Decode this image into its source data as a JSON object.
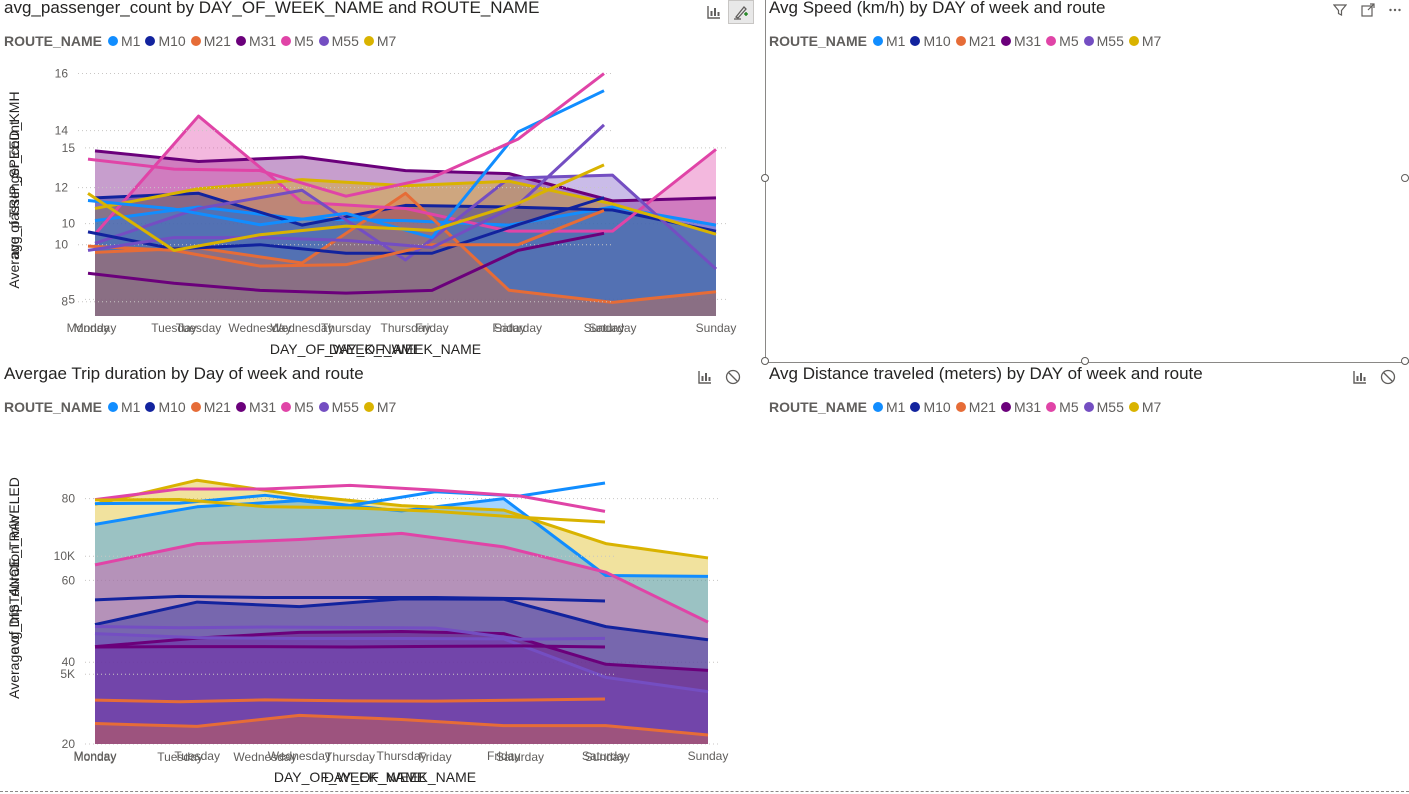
{
  "days": [
    "Monday",
    "Tuesday",
    "Wednesday",
    "Thursday",
    "Friday",
    "Saturday",
    "Sunday"
  ],
  "routes": [
    {
      "name": "M1",
      "color": "#118DFF"
    },
    {
      "name": "M10",
      "color": "#12239E"
    },
    {
      "name": "M21",
      "color": "#E66C37"
    },
    {
      "name": "M31",
      "color": "#6B007B"
    },
    {
      "name": "M5",
      "color": "#E044A7"
    },
    {
      "name": "M55",
      "color": "#744EC2"
    },
    {
      "name": "M7",
      "color": "#D9B300"
    }
  ],
  "legend_title": "ROUTE_NAME",
  "chart_data": [
    {
      "id": "passenger",
      "type": "area",
      "title": "avg_passenger_count by DAY_OF_WEEK_NAME and ROUTE_NAME",
      "xlabel": "DAY_OF_WEEK_NAME",
      "ylabel": "avg_passenger_count",
      "ylim": [
        3.9,
        17.5
      ],
      "yticks": [
        5,
        10,
        15
      ],
      "ytick_labels": [
        "5",
        "10",
        "15"
      ],
      "grid": true,
      "legend_position": "top-left",
      "series": [
        {
          "name": "M1",
          "values": [
            10.2,
            11.1,
            10.3,
            10.2,
            9.9,
            11.1,
            9.9
          ]
        },
        {
          "name": "M10",
          "values": [
            11.7,
            12.0,
            9.9,
            11.2,
            11.1,
            10.9,
            9.5
          ]
        },
        {
          "name": "M21",
          "values": [
            8.1,
            8.4,
            7.4,
            12.0,
            5.6,
            4.8,
            5.5
          ]
        },
        {
          "name": "M31",
          "values": [
            14.8,
            14.1,
            14.4,
            13.5,
            13.3,
            11.5,
            11.7
          ]
        },
        {
          "name": "M5",
          "values": [
            9.3,
            17.1,
            11.4,
            11.0,
            9.5,
            9.5,
            14.9
          ]
        },
        {
          "name": "M55",
          "values": [
            8.7,
            11.0,
            12.2,
            7.6,
            13.0,
            13.2,
            7.0
          ]
        },
        {
          "name": "M7",
          "values": [
            11.0,
            12.3,
            12.9,
            12.5,
            12.8,
            11.3,
            9.3
          ]
        }
      ]
    },
    {
      "id": "speed",
      "type": "line",
      "title": "Avg Speed (km/h) by DAY of week and route",
      "xlabel": "DAY_OF_WEEK_NAME",
      "ylabel": "Average of TRIP_SPEED_KMH",
      "ylim": [
        7.5,
        16.3
      ],
      "yticks": [
        8,
        10,
        12,
        14,
        16
      ],
      "ytick_labels": [
        "8",
        "10",
        "12",
        "14",
        "16"
      ],
      "grid": true,
      "legend_position": "top-left",
      "series": [
        {
          "name": "M1",
          "values": [
            11.55,
            11.25,
            10.7,
            11.1,
            10.25,
            13.95,
            15.4
          ]
        },
        {
          "name": "M10",
          "values": [
            10.45,
            9.85,
            10.0,
            9.7,
            9.7,
            10.7,
            11.65
          ]
        },
        {
          "name": "M21",
          "values": [
            9.95,
            9.8,
            9.25,
            9.3,
            10.0,
            10.0,
            11.2
          ]
        },
        {
          "name": "M31",
          "values": [
            9.0,
            8.65,
            8.4,
            8.3,
            8.4,
            9.8,
            10.4
          ]
        },
        {
          "name": "M5",
          "values": [
            13.0,
            12.65,
            12.6,
            11.7,
            12.35,
            13.7,
            16.0
          ]
        },
        {
          "name": "M55",
          "values": [
            9.8,
            10.25,
            10.25,
            10.15,
            9.9,
            11.4,
            14.2
          ]
        },
        {
          "name": "M7",
          "values": [
            11.8,
            9.8,
            10.35,
            10.65,
            10.5,
            11.45,
            12.8
          ]
        }
      ]
    },
    {
      "id": "duration",
      "type": "area",
      "title": "Avergae Trip duration by Day of week and route",
      "xlabel": "DAY_OF_WEEK_NAME",
      "ylabel": "avg_trip_duration_min",
      "ylim": [
        20,
        87
      ],
      "yticks": [
        20,
        40,
        60,
        80
      ],
      "ytick_labels": [
        "20",
        "40",
        "60",
        "80"
      ],
      "grid": true,
      "legend_position": "top-left",
      "series": [
        {
          "name": "M1",
          "values": [
            73.7,
            78.0,
            79.5,
            77.0,
            80.0,
            61.2,
            61.0
          ]
        },
        {
          "name": "M10",
          "values": [
            49.2,
            54.7,
            53.6,
            55.5,
            55.4,
            48.7,
            45.5
          ]
        },
        {
          "name": "M21",
          "values": [
            25.0,
            24.3,
            27.0,
            26.0,
            24.5,
            24.5,
            22.2
          ]
        },
        {
          "name": "M31",
          "values": [
            43.8,
            45.9,
            47.3,
            47.5,
            47.0,
            39.5,
            38.0
          ]
        },
        {
          "name": "M5",
          "values": [
            63.8,
            69.0,
            70.0,
            71.5,
            68.2,
            62.0,
            49.8
          ]
        },
        {
          "name": "M55",
          "values": [
            47.0,
            46.0,
            45.8,
            45.8,
            45.7,
            36.3,
            32.8
          ]
        },
        {
          "name": "M7",
          "values": [
            78.6,
            84.5,
            80.8,
            78.3,
            77.2,
            69.0,
            65.5
          ]
        }
      ]
    },
    {
      "id": "distance",
      "type": "line",
      "title": "Avg Distance traveled (meters) by DAY of week and route",
      "xlabel": "DAY_OF_WEEK_NAME",
      "ylabel": "Average of DISTANCE_TRAVELED",
      "ylim": [
        2000,
        14500
      ],
      "yticks": [
        5000,
        10000
      ],
      "ytick_labels": [
        "5K",
        "10K"
      ],
      "grid": true,
      "legend_position": "top-left",
      "series": [
        {
          "name": "M1",
          "values": [
            12230,
            12250,
            12580,
            12150,
            12730,
            12550,
            13100
          ]
        },
        {
          "name": "M10",
          "values": [
            8150,
            8300,
            8250,
            8250,
            8250,
            8200,
            8100
          ]
        },
        {
          "name": "M21",
          "values": [
            3900,
            3830,
            3910,
            3870,
            3860,
            3900,
            3950
          ]
        },
        {
          "name": "M31",
          "values": [
            6150,
            6170,
            6170,
            6150,
            6180,
            6200,
            6150
          ]
        },
        {
          "name": "M5",
          "values": [
            12400,
            12850,
            12850,
            13000,
            12800,
            12550,
            11900
          ]
        },
        {
          "name": "M55",
          "values": [
            7020,
            6970,
            7000,
            6980,
            6960,
            6480,
            6520
          ]
        },
        {
          "name": "M7",
          "values": [
            12380,
            12400,
            12100,
            12050,
            11900,
            11650,
            11450
          ]
        }
      ]
    }
  ]
}
